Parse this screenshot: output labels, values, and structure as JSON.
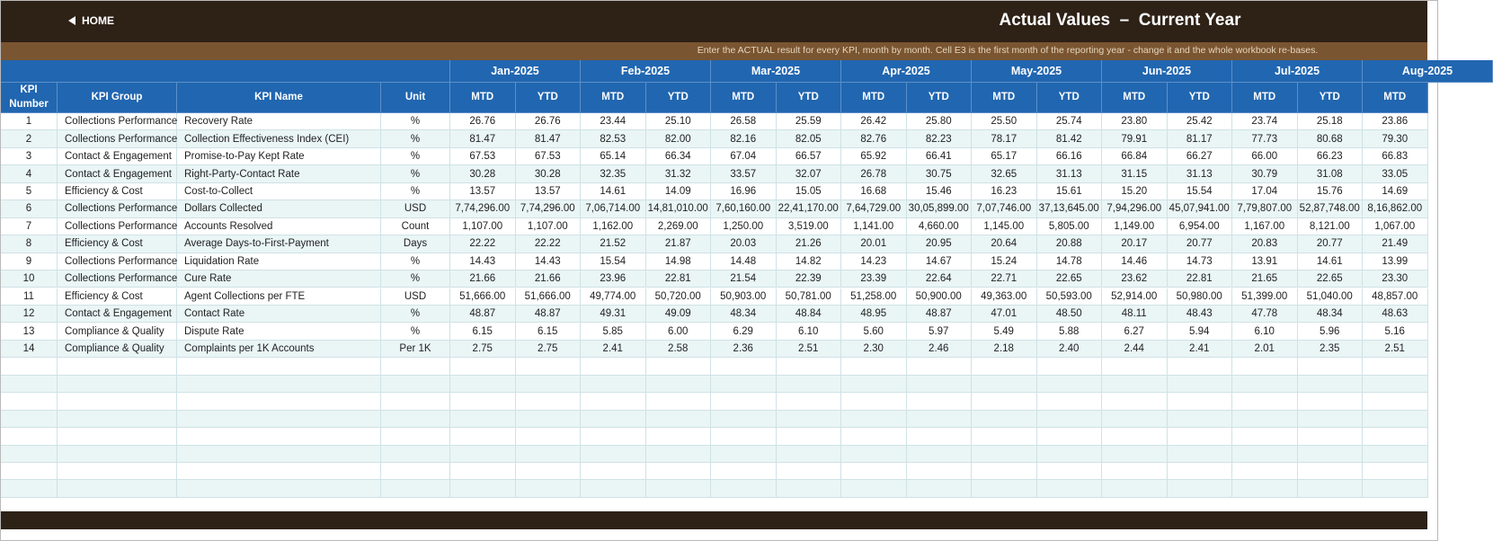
{
  "header": {
    "home": "HOME",
    "title": "Actual Values  –  Current Year",
    "note": "Enter the ACTUAL result for every KPI, month by month. Cell E3 is the first month of the reporting year - change it and the whole workbook re-bases."
  },
  "table": {
    "columns": [
      "KPI Number",
      "KPI Group",
      "KPI Name",
      "Unit"
    ],
    "months": [
      "Jan-2025",
      "Feb-2025",
      "Mar-2025",
      "Apr-2025",
      "May-2025",
      "Jun-2025",
      "Jul-2025",
      "Aug-2025"
    ],
    "subcolumns": [
      "MTD",
      "YTD"
    ],
    "rows": [
      [
        1,
        "Collections Performance",
        "Recovery Rate",
        "%",
        "26.76",
        "26.76",
        "23.44",
        "25.10",
        "26.58",
        "25.59",
        "26.42",
        "25.80",
        "25.50",
        "25.74",
        "23.80",
        "25.42",
        "23.74",
        "25.18",
        "23.86"
      ],
      [
        2,
        "Collections Performance",
        "Collection Effectiveness Index (CEI)",
        "%",
        "81.47",
        "81.47",
        "82.53",
        "82.00",
        "82.16",
        "82.05",
        "82.76",
        "82.23",
        "78.17",
        "81.42",
        "79.91",
        "81.17",
        "77.73",
        "80.68",
        "79.30"
      ],
      [
        3,
        "Contact & Engagement",
        "Promise-to-Pay Kept Rate",
        "%",
        "67.53",
        "67.53",
        "65.14",
        "66.34",
        "67.04",
        "66.57",
        "65.92",
        "66.41",
        "65.17",
        "66.16",
        "66.84",
        "66.27",
        "66.00",
        "66.23",
        "66.83"
      ],
      [
        4,
        "Contact & Engagement",
        "Right-Party-Contact Rate",
        "%",
        "30.28",
        "30.28",
        "32.35",
        "31.32",
        "33.57",
        "32.07",
        "26.78",
        "30.75",
        "32.65",
        "31.13",
        "31.15",
        "31.13",
        "30.79",
        "31.08",
        "33.05"
      ],
      [
        5,
        "Efficiency & Cost",
        "Cost-to-Collect",
        "%",
        "13.57",
        "13.57",
        "14.61",
        "14.09",
        "16.96",
        "15.05",
        "16.68",
        "15.46",
        "16.23",
        "15.61",
        "15.20",
        "15.54",
        "17.04",
        "15.76",
        "14.69"
      ],
      [
        6,
        "Collections Performance",
        "Dollars Collected",
        "USD",
        "7,74,296.00",
        "7,74,296.00",
        "7,06,714.00",
        "14,81,010.00",
        "7,60,160.00",
        "22,41,170.00",
        "7,64,729.00",
        "30,05,899.00",
        "7,07,746.00",
        "37,13,645.00",
        "7,94,296.00",
        "45,07,941.00",
        "7,79,807.00",
        "52,87,748.00",
        "8,16,862.00"
      ],
      [
        7,
        "Collections Performance",
        "Accounts Resolved",
        "Count",
        "1,107.00",
        "1,107.00",
        "1,162.00",
        "2,269.00",
        "1,250.00",
        "3,519.00",
        "1,141.00",
        "4,660.00",
        "1,145.00",
        "5,805.00",
        "1,149.00",
        "6,954.00",
        "1,167.00",
        "8,121.00",
        "1,067.00"
      ],
      [
        8,
        "Efficiency & Cost",
        "Average Days-to-First-Payment",
        "Days",
        "22.22",
        "22.22",
        "21.52",
        "21.87",
        "20.03",
        "21.26",
        "20.01",
        "20.95",
        "20.64",
        "20.88",
        "20.17",
        "20.77",
        "20.83",
        "20.77",
        "21.49"
      ],
      [
        9,
        "Collections Performance",
        "Liquidation Rate",
        "%",
        "14.43",
        "14.43",
        "15.54",
        "14.98",
        "14.48",
        "14.82",
        "14.23",
        "14.67",
        "15.24",
        "14.78",
        "14.46",
        "14.73",
        "13.91",
        "14.61",
        "13.99"
      ],
      [
        10,
        "Collections Performance",
        "Cure Rate",
        "%",
        "21.66",
        "21.66",
        "23.96",
        "22.81",
        "21.54",
        "22.39",
        "23.39",
        "22.64",
        "22.71",
        "22.65",
        "23.62",
        "22.81",
        "21.65",
        "22.65",
        "23.30"
      ],
      [
        11,
        "Efficiency & Cost",
        "Agent Collections per FTE",
        "USD",
        "51,666.00",
        "51,666.00",
        "49,774.00",
        "50,720.00",
        "50,903.00",
        "50,781.00",
        "51,258.00",
        "50,900.00",
        "49,363.00",
        "50,593.00",
        "52,914.00",
        "50,980.00",
        "51,399.00",
        "51,040.00",
        "48,857.00"
      ],
      [
        12,
        "Contact & Engagement",
        "Contact Rate",
        "%",
        "48.87",
        "48.87",
        "49.31",
        "49.09",
        "48.34",
        "48.84",
        "48.95",
        "48.87",
        "47.01",
        "48.50",
        "48.11",
        "48.43",
        "47.78",
        "48.34",
        "48.63"
      ],
      [
        13,
        "Compliance & Quality",
        "Dispute Rate",
        "%",
        "6.15",
        "6.15",
        "5.85",
        "6.00",
        "6.29",
        "6.10",
        "5.60",
        "5.97",
        "5.49",
        "5.88",
        "6.27",
        "5.94",
        "6.10",
        "5.96",
        "5.16"
      ],
      [
        14,
        "Compliance & Quality",
        "Complaints per 1K Accounts",
        "Per 1K",
        "2.75",
        "2.75",
        "2.41",
        "2.58",
        "2.36",
        "2.51",
        "2.30",
        "2.46",
        "2.18",
        "2.40",
        "2.44",
        "2.41",
        "2.01",
        "2.35",
        "2.51"
      ]
    ]
  }
}
